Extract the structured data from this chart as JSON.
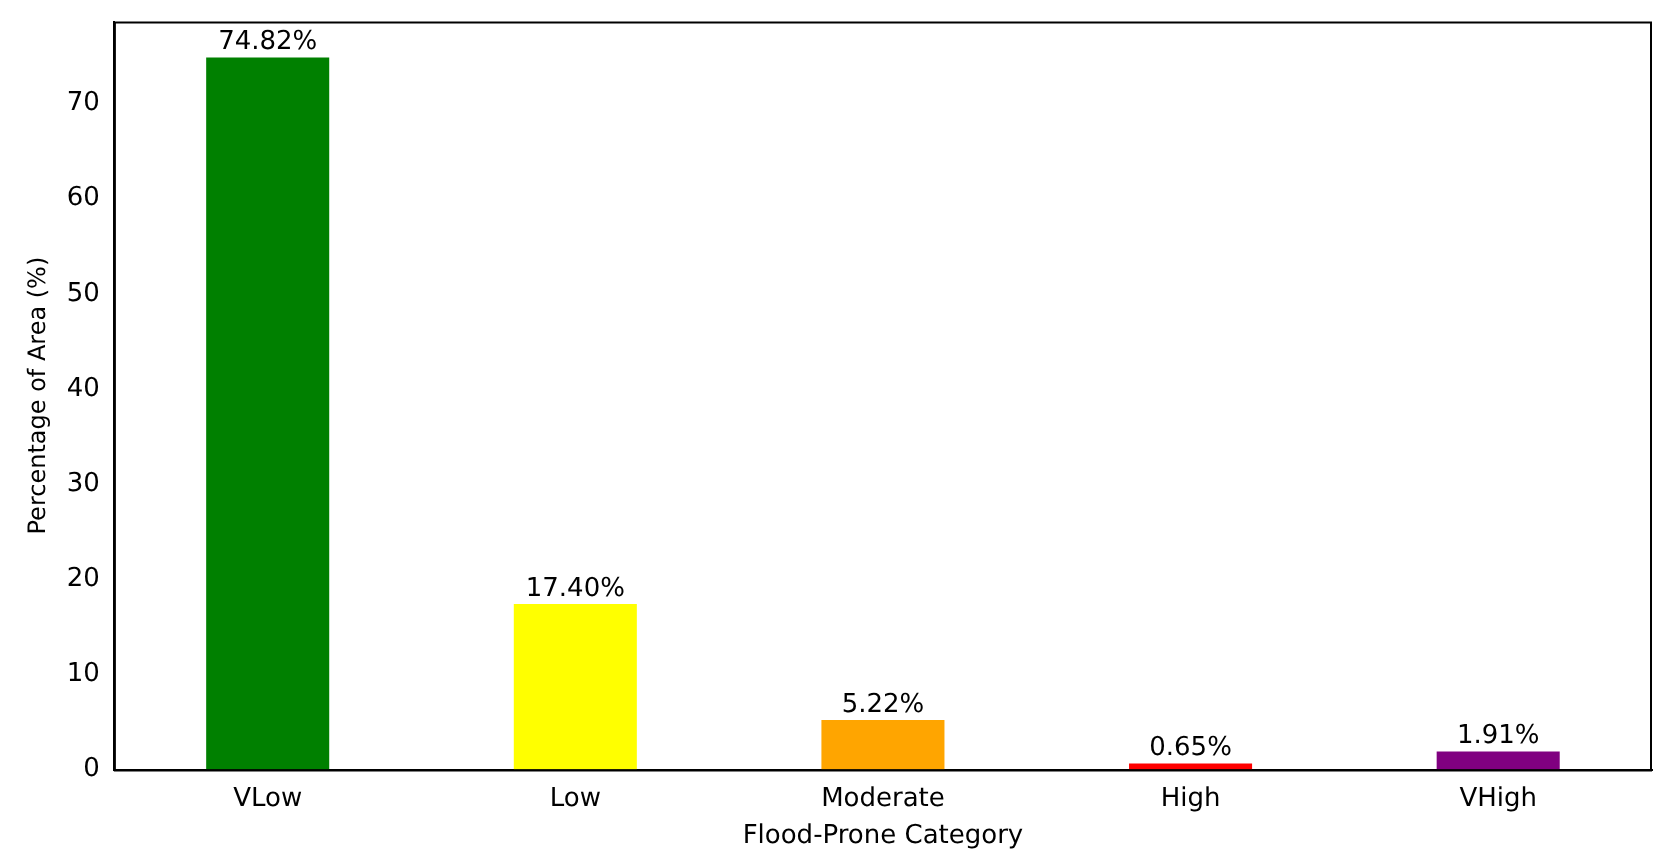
{
  "chart_data": {
    "type": "bar",
    "xlabel": "Flood-Prone Category",
    "ylabel": "Percentage of Area (%)",
    "categories": [
      "VLow",
      "Low",
      "Moderate",
      "High",
      "VHigh"
    ],
    "values": [
      74.82,
      17.4,
      5.22,
      0.65,
      1.91
    ],
    "colors": [
      "#008000",
      "#ffff00",
      "#ffa500",
      "#ff0000",
      "#800080"
    ],
    "value_labels": [
      "74.82%",
      "17.40%",
      "5.22%",
      "0.65%",
      "1.91%"
    ],
    "ylim": [
      0,
      78.6
    ],
    "yticks": [
      0,
      10,
      20,
      30,
      40,
      50,
      60,
      70
    ],
    "grid": false,
    "legend": false
  }
}
